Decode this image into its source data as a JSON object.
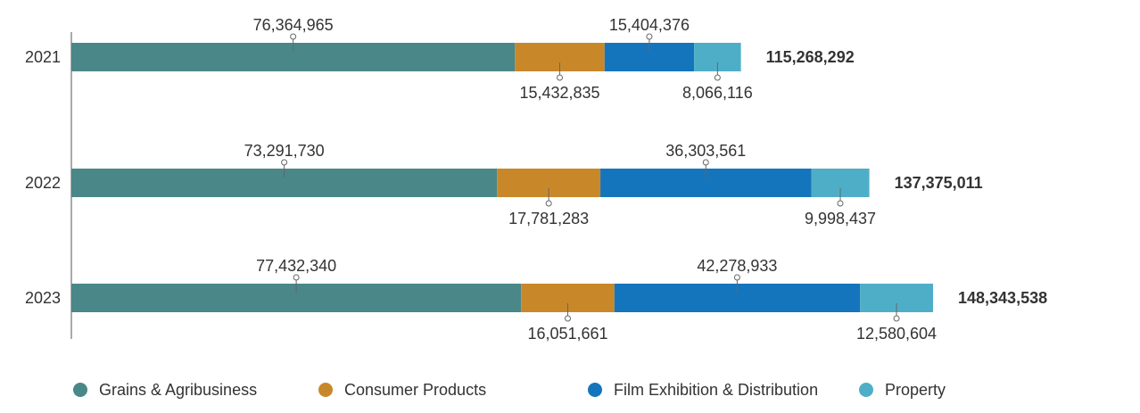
{
  "chart_data": {
    "type": "bar",
    "orientation": "horizontal",
    "stacked": true,
    "categories": [
      "2021",
      "2022",
      "2023"
    ],
    "series": [
      {
        "name": "Grains & Agribusiness",
        "values": [
          76364965,
          73291730,
          77432340
        ]
      },
      {
        "name": "Consumer Products",
        "values": [
          15432835,
          17781283,
          16051661
        ]
      },
      {
        "name": "Film Exhibition & Distribution",
        "values": [
          15404376,
          36303561,
          42278933
        ]
      },
      {
        "name": "Property",
        "values": [
          8066116,
          9998437,
          12580604
        ]
      }
    ],
    "value_labels": [
      [
        "76,364,965",
        "15,432,835",
        "15,404,376",
        "8,066,116"
      ],
      [
        "73,291,730",
        "17,781,283",
        "36,303,561",
        "9,998,437"
      ],
      [
        "77,432,340",
        "16,051,661",
        "42,278,933",
        "12,580,604"
      ]
    ],
    "label_side": [
      "above",
      "below",
      "above",
      "below"
    ],
    "totals": [
      115268292,
      137375011,
      148343538
    ],
    "total_labels": [
      "115,268,292",
      "137,375,011",
      "148,343,538"
    ],
    "xlim": [
      0,
      148343538
    ],
    "legend_position": "bottom",
    "grid": false
  },
  "colors": {
    "series": [
      "#4a8788",
      "#c8882a",
      "#1475bd",
      "#4faec7"
    ],
    "axis": "#555555",
    "text": "#333333",
    "leader": "#666666"
  }
}
